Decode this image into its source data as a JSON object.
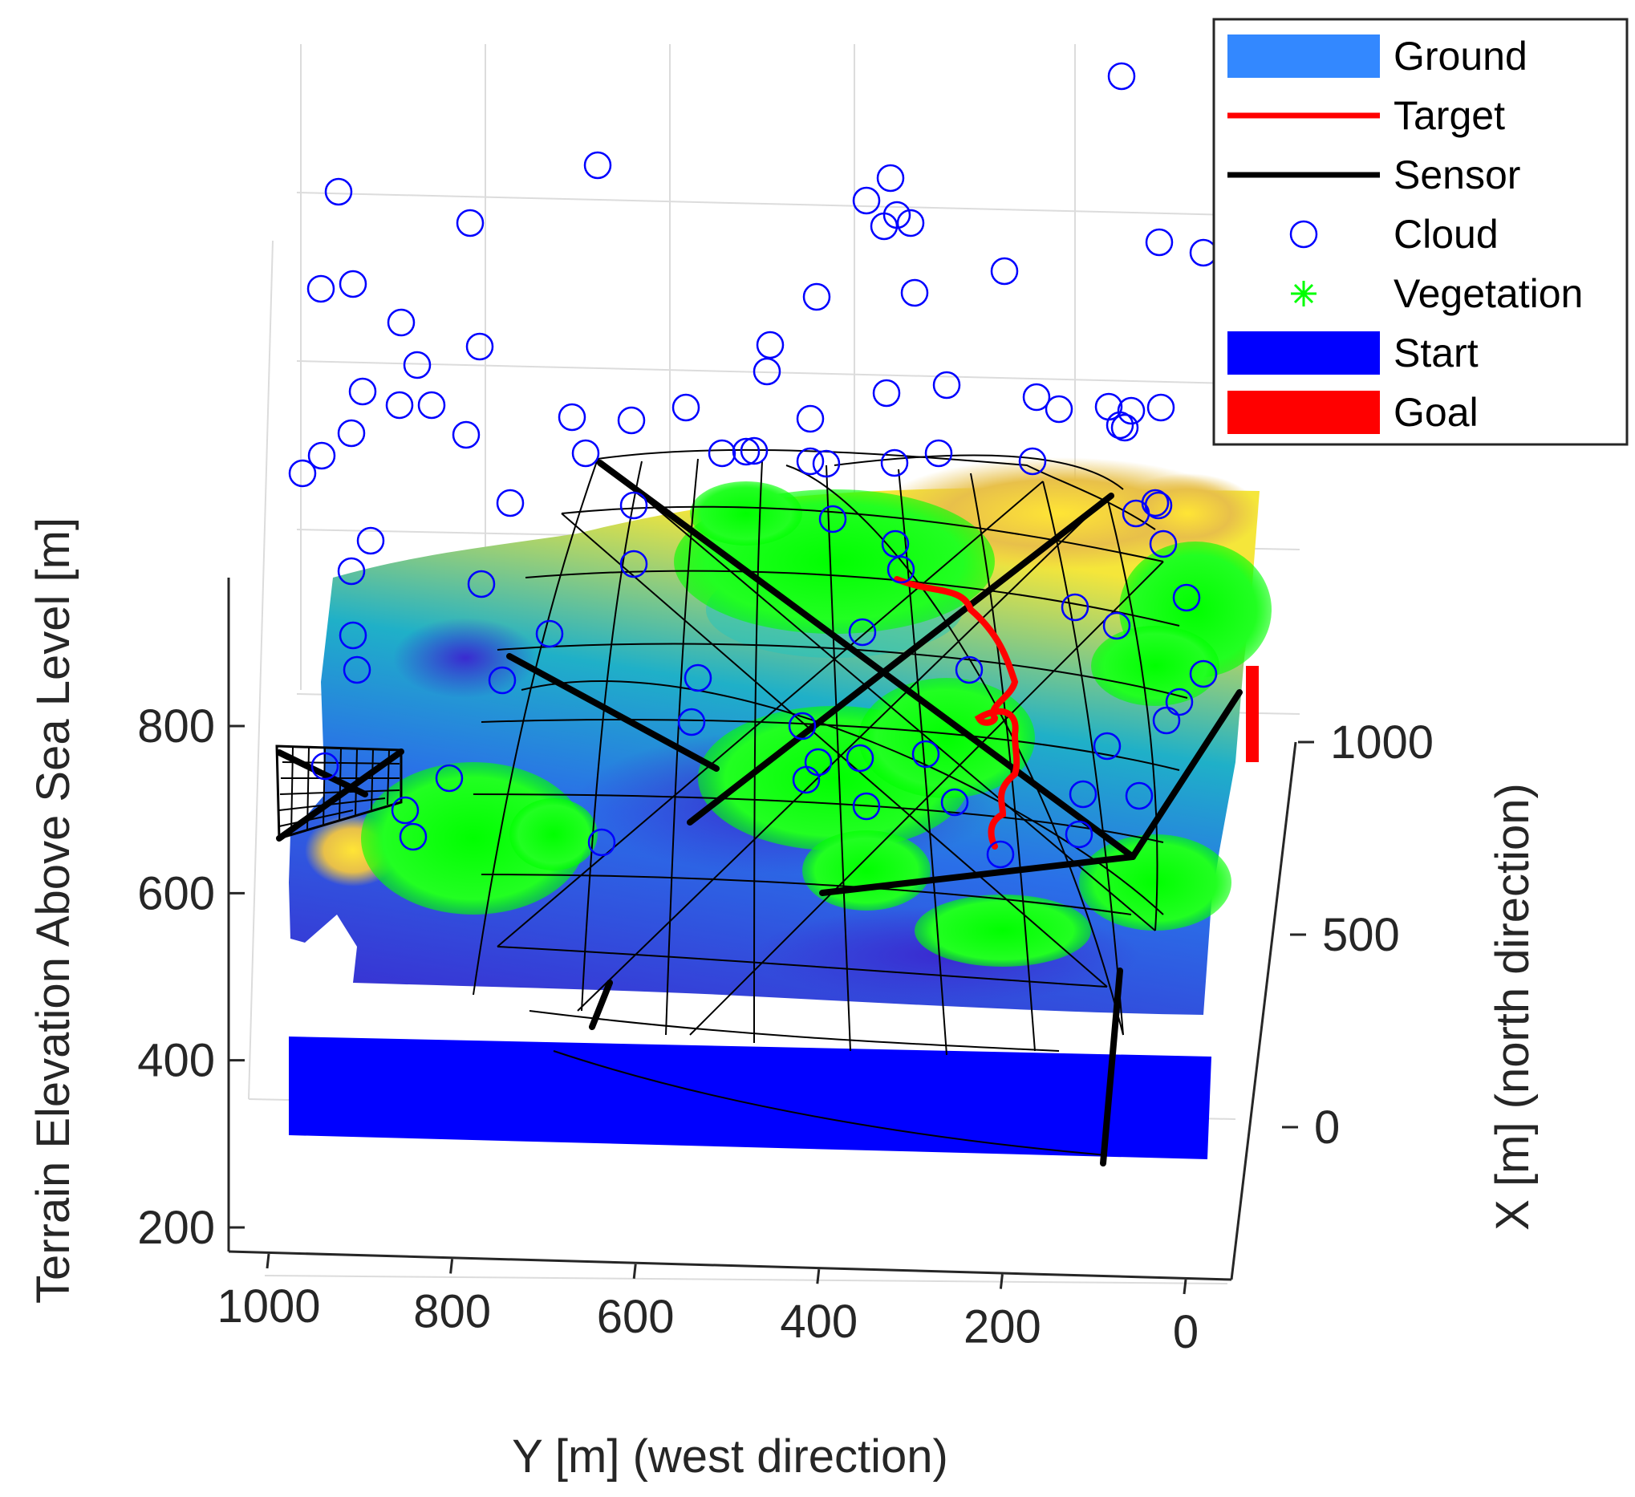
{
  "chart_data": {
    "type": "3d-surface-scene",
    "xlabel": "Y [m] (west direction)",
    "ylabel": "X [m] (north direction)",
    "zlabel": "Terrain Elevation Above Sea Level [m]",
    "y_axis_ticks": [
      "1000",
      "800",
      "600",
      "400",
      "200",
      "0"
    ],
    "y_axis_values": [
      1000,
      800,
      600,
      400,
      200,
      0
    ],
    "x_axis_ticks": [
      "1000",
      "500",
      "0"
    ],
    "x_axis_values": [
      1000,
      500,
      0
    ],
    "z_axis_ticks": [
      "800",
      "600",
      "400",
      "200"
    ],
    "z_axis_values": [
      800,
      600,
      400,
      200
    ],
    "legend_position": "top-right",
    "legend": [
      {
        "label": "Ground",
        "kind": "patch",
        "color": "#3388ff"
      },
      {
        "label": "Target",
        "kind": "line",
        "color": "#ff0000"
      },
      {
        "label": "Sensor",
        "kind": "line",
        "color": "#000000"
      },
      {
        "label": "Cloud",
        "kind": "marker-circle",
        "color": "#0000ff"
      },
      {
        "label": "Vegetation",
        "kind": "marker-asterisk",
        "color": "#00ff00"
      },
      {
        "label": "Start",
        "kind": "patch",
        "color": "#0000ff"
      },
      {
        "label": "Goal",
        "kind": "patch",
        "color": "#ff0000"
      }
    ],
    "colors": {
      "ground_low": "#3a2ad0",
      "ground_mid": "#1fb0c8",
      "ground_high": "#f5e63a",
      "vegetation": "#00ff00",
      "cloud": "#0000ff",
      "target": "#ff0000",
      "sensor": "#000000",
      "start": "#0000ff",
      "goal": "#ff0000"
    }
  }
}
